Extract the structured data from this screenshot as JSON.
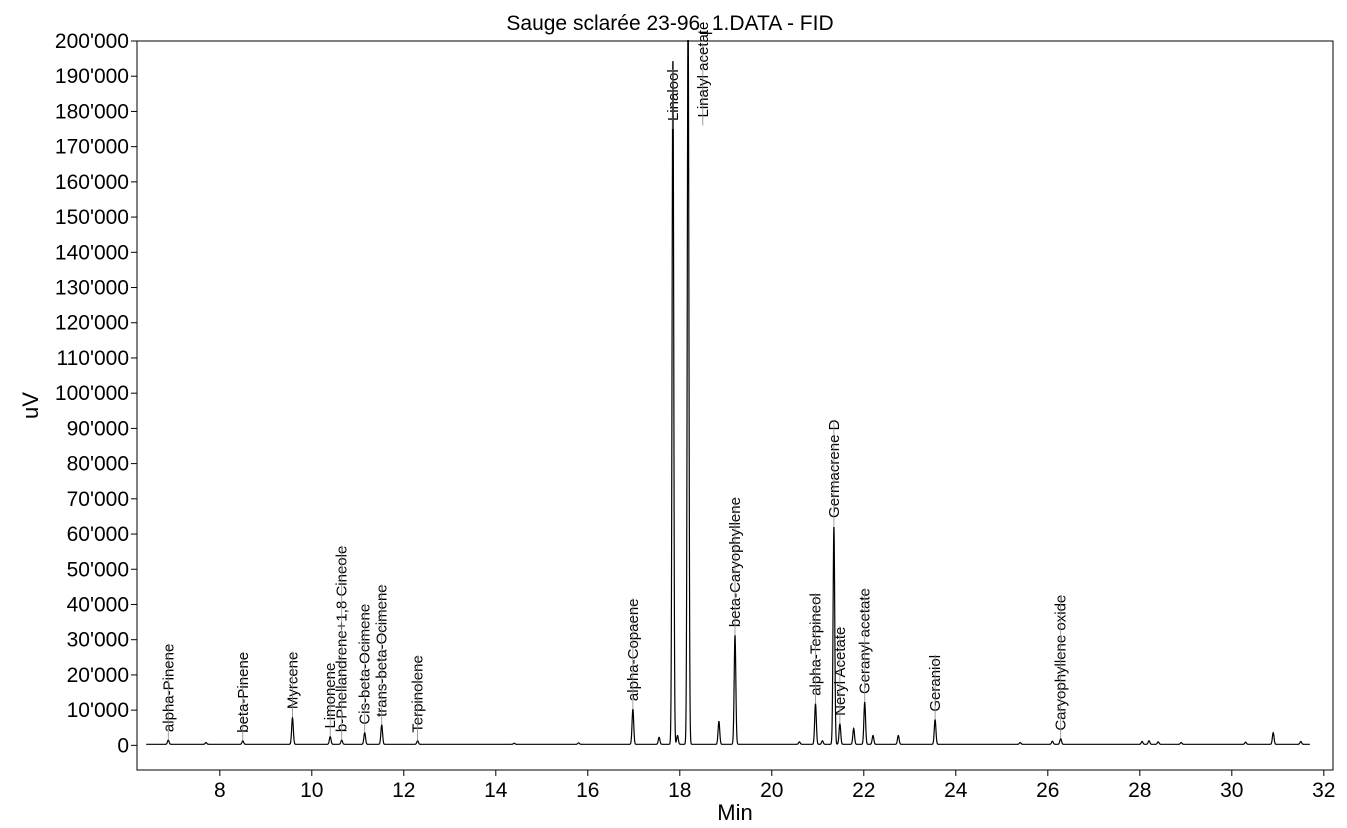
{
  "chart_data": {
    "type": "line",
    "title": "Sauge sclarée 23-96_1.DATA - FID",
    "xlabel": "Min",
    "ylabel": "uV",
    "xlim": [
      6.2,
      32.2
    ],
    "ylim": [
      -7000,
      200000
    ],
    "x_ticks": [
      8,
      10,
      12,
      14,
      16,
      18,
      20,
      22,
      24,
      26,
      28,
      30,
      32
    ],
    "y_ticks": [
      0,
      10000,
      20000,
      30000,
      40000,
      50000,
      60000,
      70000,
      80000,
      90000,
      100000,
      110000,
      120000,
      130000,
      140000,
      150000,
      160000,
      170000,
      180000,
      190000,
      200000
    ],
    "y_tick_labels": [
      "0",
      "10'000",
      "20'000",
      "30'000",
      "40'000",
      "50'000",
      "60'000",
      "70'000",
      "80'000",
      "90'000",
      "100'000",
      "110'000",
      "120'000",
      "130'000",
      "140'000",
      "150'000",
      "160'000",
      "170'000",
      "180'000",
      "190'000",
      "200'000"
    ],
    "grid": false,
    "line_color": "#000000",
    "baseline": 300,
    "peaks": [
      {
        "x": 6.88,
        "height": 1200
      },
      {
        "x": 7.7,
        "height": 500
      },
      {
        "x": 8.5,
        "height": 1000
      },
      {
        "x": 9.58,
        "height": 7500
      },
      {
        "x": 10.4,
        "height": 2200
      },
      {
        "x": 10.65,
        "height": 1200
      },
      {
        "x": 11.15,
        "height": 3300
      },
      {
        "x": 11.52,
        "height": 5500
      },
      {
        "x": 12.3,
        "height": 1000
      },
      {
        "x": 14.4,
        "height": 300
      },
      {
        "x": 15.8,
        "height": 400
      },
      {
        "x": 16.98,
        "height": 10000
      },
      {
        "x": 17.55,
        "height": 2000
      },
      {
        "x": 17.85,
        "height": 195000
      },
      {
        "x": 17.95,
        "height": 2500
      },
      {
        "x": 18.18,
        "height": 210000
      },
      {
        "x": 18.85,
        "height": 6500
      },
      {
        "x": 19.2,
        "height": 31000
      },
      {
        "x": 20.6,
        "height": 700
      },
      {
        "x": 20.95,
        "height": 11500
      },
      {
        "x": 21.1,
        "height": 1000
      },
      {
        "x": 21.35,
        "height": 62000
      },
      {
        "x": 21.48,
        "height": 5800
      },
      {
        "x": 21.78,
        "height": 4500
      },
      {
        "x": 22.02,
        "height": 12000
      },
      {
        "x": 22.2,
        "height": 2500
      },
      {
        "x": 22.75,
        "height": 2500
      },
      {
        "x": 23.55,
        "height": 7000
      },
      {
        "x": 25.4,
        "height": 500
      },
      {
        "x": 26.1,
        "height": 900
      },
      {
        "x": 26.28,
        "height": 1600
      },
      {
        "x": 28.05,
        "height": 800
      },
      {
        "x": 28.2,
        "height": 1000
      },
      {
        "x": 28.4,
        "height": 700
      },
      {
        "x": 28.9,
        "height": 500
      },
      {
        "x": 30.3,
        "height": 600
      },
      {
        "x": 30.9,
        "height": 3300
      },
      {
        "x": 31.5,
        "height": 800
      }
    ],
    "annotations": [
      {
        "label": "alpha-Pinene",
        "x": 6.88,
        "y_end": 1500
      },
      {
        "label": "beta-Pinene",
        "x": 8.5,
        "y_end": 1300
      },
      {
        "label": "Myrcene",
        "x": 9.58,
        "y_end": 8000
      },
      {
        "label": "Limonene",
        "x": 10.4,
        "y_end": 2500
      },
      {
        "label": "b-Phellandrene+1,8 Cineole",
        "x": 10.65,
        "y_end": 1500
      },
      {
        "label": "Cis-beta-Ocimene",
        "x": 11.15,
        "y_end": 3600
      },
      {
        "label": "trans-beta-Ocimene",
        "x": 11.52,
        "y_end": 5800
      },
      {
        "label": "Terpinolene",
        "x": 12.3,
        "y_end": 1300
      },
      {
        "label": "alpha-Copaene",
        "x": 16.98,
        "y_end": 10300
      },
      {
        "label": "Linalool",
        "x": 17.85,
        "y_end": 175000
      },
      {
        "label": "Linalyl acetate",
        "x": 18.5,
        "y_end": 176000
      },
      {
        "label": "beta-Caryophyllene",
        "x": 19.2,
        "y_end": 31300
      },
      {
        "label": "alpha-Terpineol",
        "x": 20.95,
        "y_end": 11800
      },
      {
        "label": "Germacrene D",
        "x": 21.35,
        "y_end": 62300
      },
      {
        "label": "Neryl Acetate",
        "x": 21.48,
        "y_end": 6100
      },
      {
        "label": "Geranyl acetate",
        "x": 22.02,
        "y_end": 12300
      },
      {
        "label": "Geraniol",
        "x": 23.55,
        "y_end": 7300
      },
      {
        "label": "Caryophyllene oxide",
        "x": 26.28,
        "y_end": 1900
      }
    ]
  }
}
